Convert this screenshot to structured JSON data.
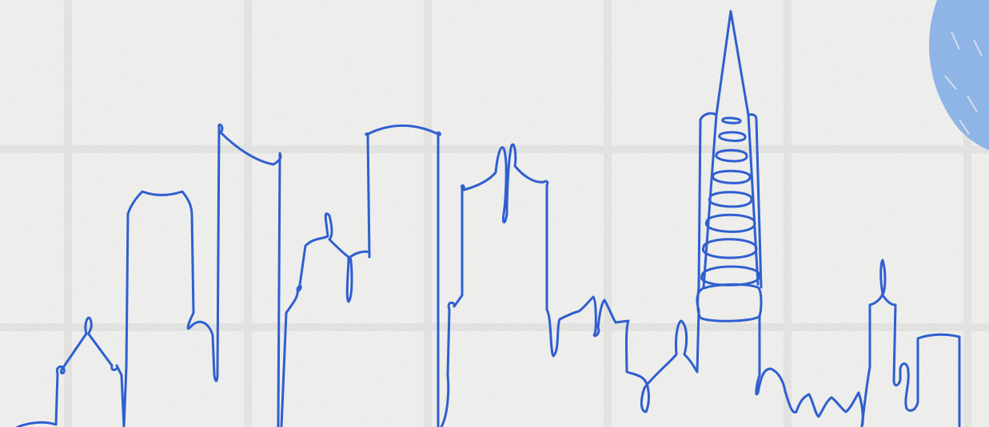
{
  "scene": {
    "background_color": "#efefed",
    "grid_line_color": "#e2e2df",
    "line_color": "#2f5fd0",
    "brush_color": "#8fb4e6"
  }
}
